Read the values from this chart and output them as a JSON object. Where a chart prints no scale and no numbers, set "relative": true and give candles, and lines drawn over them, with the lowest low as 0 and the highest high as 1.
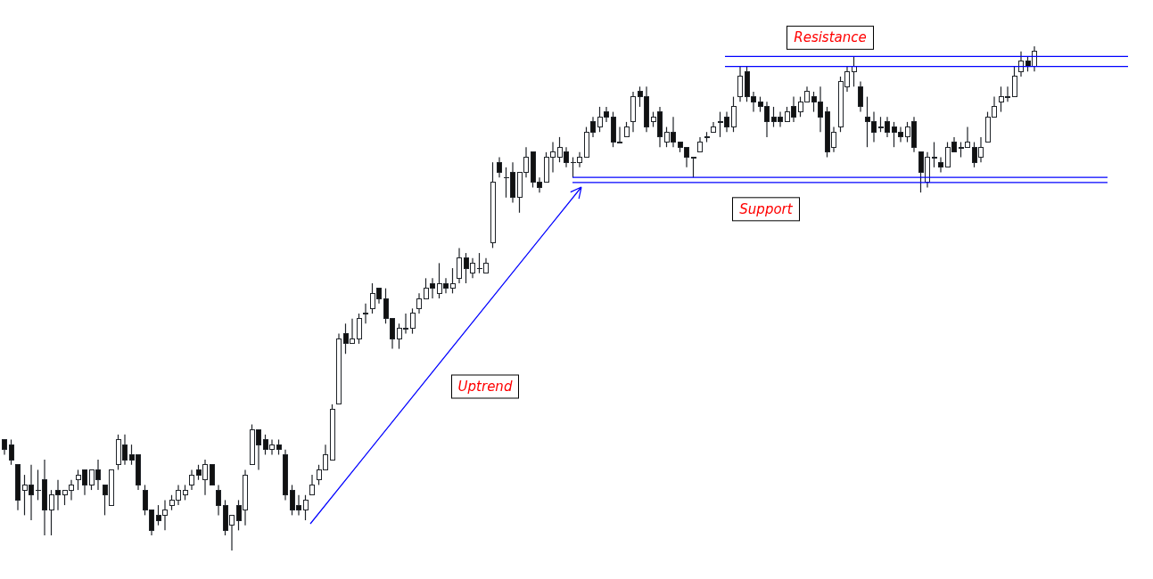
{
  "chart_data": {
    "type": "candlestick",
    "relative": true,
    "categories": [
      null,
      null,
      null,
      null,
      null,
      null,
      null,
      null,
      null,
      null,
      null,
      null,
      null,
      null,
      null,
      null,
      null,
      null,
      null,
      null,
      null,
      null,
      null,
      null,
      null,
      null,
      null,
      null,
      null,
      null,
      null,
      null,
      null,
      null,
      null,
      null,
      null,
      null,
      null,
      null,
      null,
      null,
      null,
      null,
      null,
      null,
      null,
      null,
      null,
      null,
      null,
      null,
      null,
      null,
      null,
      null,
      null,
      null,
      null,
      null,
      null,
      null,
      null,
      null,
      null,
      null,
      null,
      null,
      null,
      null,
      null,
      null,
      null,
      null,
      null,
      null,
      null,
      null,
      null,
      null,
      null,
      null,
      null,
      null,
      null,
      null,
      null,
      null,
      null,
      null,
      null,
      null,
      null,
      null,
      null,
      null,
      null,
      null,
      null,
      null,
      null,
      null,
      null,
      null,
      null,
      null,
      null,
      null,
      null,
      null,
      null,
      null,
      null,
      null,
      null,
      null,
      null,
      null,
      null,
      null,
      null,
      null,
      null,
      null,
      null,
      null,
      null,
      null,
      null,
      null,
      null,
      null,
      null,
      null,
      null,
      null,
      null,
      null,
      null,
      null,
      null,
      null,
      null,
      null,
      null,
      null,
      null,
      null,
      null,
      null,
      null,
      null,
      null,
      null,
      null
    ],
    "ohlc": [
      [
        0.22,
        0.22,
        0.19,
        0.2
      ],
      [
        0.21,
        0.22,
        0.17,
        0.18
      ],
      [
        0.17,
        0.17,
        0.08,
        0.1
      ],
      [
        0.12,
        0.15,
        0.07,
        0.13
      ],
      [
        0.13,
        0.17,
        0.06,
        0.11
      ],
      [
        0.12,
        0.16,
        0.1,
        0.12
      ],
      [
        0.14,
        0.18,
        0.03,
        0.08
      ],
      [
        0.08,
        0.12,
        0.03,
        0.11
      ],
      [
        0.12,
        0.14,
        0.08,
        0.11
      ],
      [
        0.11,
        0.12,
        0.09,
        0.12
      ],
      [
        0.12,
        0.14,
        0.1,
        0.13
      ],
      [
        0.14,
        0.16,
        0.12,
        0.15
      ],
      [
        0.16,
        0.16,
        0.11,
        0.13
      ],
      [
        0.13,
        0.16,
        0.12,
        0.16
      ],
      [
        0.16,
        0.18,
        0.12,
        0.14
      ],
      [
        0.13,
        0.13,
        0.07,
        0.11
      ],
      [
        0.09,
        0.16,
        0.09,
        0.16
      ],
      [
        0.17,
        0.23,
        0.16,
        0.22
      ],
      [
        0.21,
        0.23,
        0.17,
        0.18
      ],
      [
        0.19,
        0.21,
        0.17,
        0.18
      ],
      [
        0.19,
        0.19,
        0.12,
        0.13
      ],
      [
        0.12,
        0.13,
        0.07,
        0.08
      ],
      [
        0.08,
        0.08,
        0.03,
        0.04
      ],
      [
        0.07,
        0.09,
        0.05,
        0.06
      ],
      [
        0.07,
        0.1,
        0.04,
        0.08
      ],
      [
        0.09,
        0.11,
        0.08,
        0.1
      ],
      [
        0.1,
        0.13,
        0.09,
        0.12
      ],
      [
        0.11,
        0.13,
        0.1,
        0.12
      ],
      [
        0.13,
        0.16,
        0.12,
        0.15
      ],
      [
        0.16,
        0.17,
        0.14,
        0.15
      ],
      [
        0.14,
        0.18,
        0.11,
        0.17
      ],
      [
        0.17,
        0.17,
        0.13,
        0.13
      ],
      [
        0.12,
        0.13,
        0.07,
        0.09
      ],
      [
        0.09,
        0.1,
        0.03,
        0.04
      ],
      [
        0.05,
        0.07,
        0,
        0.07
      ],
      [
        0.09,
        0.1,
        0.04,
        0.06
      ],
      [
        0.08,
        0.16,
        0.05,
        0.15
      ],
      [
        0.17,
        0.25,
        0.17,
        0.24
      ],
      [
        0.24,
        0.24,
        0.16,
        0.21
      ],
      [
        0.22,
        0.23,
        0.19,
        0.2
      ],
      [
        0.2,
        0.22,
        0.19,
        0.21
      ],
      [
        0.21,
        0.22,
        0.19,
        0.2
      ],
      [
        0.19,
        0.2,
        0.1,
        0.11
      ],
      [
        0.12,
        0.13,
        0.07,
        0.08
      ],
      [
        0.09,
        0.11,
        0.07,
        0.08
      ],
      [
        0.08,
        0.11,
        0.06,
        0.1
      ],
      [
        0.11,
        0.15,
        0.11,
        0.13
      ],
      [
        0.14,
        0.17,
        0.13,
        0.16
      ],
      [
        0.16,
        0.21,
        0.16,
        0.19
      ],
      [
        0.18,
        0.29,
        0.18,
        0.28
      ],
      [
        0.29,
        0.43,
        0.29,
        0.42
      ],
      [
        0.43,
        0.45,
        0.39,
        0.41
      ],
      [
        0.41,
        0.46,
        0.41,
        0.42
      ],
      [
        0.42,
        0.47,
        0.41,
        0.46
      ],
      [
        0.47,
        0.49,
        0.45,
        0.47
      ],
      [
        0.48,
        0.53,
        0.47,
        0.51
      ],
      [
        0.52,
        0.52,
        0.49,
        0.5
      ],
      [
        0.5,
        0.52,
        0.45,
        0.46
      ],
      [
        0.46,
        0.46,
        0.4,
        0.42
      ],
      [
        0.42,
        0.45,
        0.4,
        0.44
      ],
      [
        0.44,
        0.47,
        0.43,
        0.44
      ],
      [
        0.44,
        0.48,
        0.43,
        0.47
      ],
      [
        0.48,
        0.51,
        0.47,
        0.5
      ],
      [
        0.5,
        0.54,
        0.5,
        0.52
      ],
      [
        0.53,
        0.54,
        0.5,
        0.52
      ],
      [
        0.51,
        0.57,
        0.5,
        0.53
      ],
      [
        0.53,
        0.54,
        0.51,
        0.52
      ],
      [
        0.52,
        0.56,
        0.51,
        0.53
      ],
      [
        0.54,
        0.6,
        0.53,
        0.58
      ],
      [
        0.58,
        0.59,
        0.53,
        0.56
      ],
      [
        0.55,
        0.58,
        0.54,
        0.57
      ],
      [
        0.56,
        0.59,
        0.55,
        0.56
      ],
      [
        0.55,
        0.58,
        0.55,
        0.57
      ],
      [
        0.61,
        0.77,
        0.6,
        0.73
      ],
      [
        0.77,
        0.78,
        0.74,
        0.75
      ],
      [
        0.74,
        0.76,
        0.7,
        0.74
      ],
      [
        0.75,
        0.77,
        0.69,
        0.7
      ],
      [
        0.7,
        0.75,
        0.67,
        0.75
      ],
      [
        0.75,
        0.8,
        0.74,
        0.78
      ],
      [
        0.79,
        0.79,
        0.72,
        0.73
      ],
      [
        0.73,
        0.74,
        0.71,
        0.72
      ],
      [
        0.73,
        0.79,
        0.73,
        0.78
      ],
      [
        0.78,
        0.81,
        0.75,
        0.79
      ],
      [
        0.78,
        0.82,
        0.77,
        0.8
      ],
      [
        0.79,
        0.8,
        0.76,
        0.77
      ],
      [
        0.77,
        0.78,
        0.74,
        0.77
      ],
      [
        0.77,
        0.79,
        0.76,
        0.78
      ],
      [
        0.78,
        0.84,
        0.78,
        0.83
      ],
      [
        0.85,
        0.86,
        0.82,
        0.83
      ],
      [
        0.84,
        0.88,
        0.83,
        0.86
      ],
      [
        0.87,
        0.88,
        0.85,
        0.86
      ],
      [
        0.86,
        0.87,
        0.8,
        0.81
      ],
      [
        0.81,
        0.84,
        0.81,
        0.81
      ],
      [
        0.82,
        0.85,
        0.82,
        0.84
      ],
      [
        0.85,
        0.91,
        0.83,
        0.9
      ],
      [
        0.91,
        0.92,
        0.88,
        0.9
      ],
      [
        0.9,
        0.92,
        0.83,
        0.84
      ],
      [
        0.85,
        0.87,
        0.84,
        0.86
      ],
      [
        0.87,
        0.88,
        0.8,
        0.82
      ],
      [
        0.81,
        0.84,
        0.8,
        0.83
      ],
      [
        0.83,
        0.86,
        0.8,
        0.81
      ],
      [
        0.81,
        0.81,
        0.79,
        0.8
      ],
      [
        0.8,
        0.8,
        0.76,
        0.78
      ],
      [
        0.78,
        0.78,
        0.74,
        0.78
      ],
      [
        0.79,
        0.82,
        0.79,
        0.81
      ],
      [
        0.82,
        0.83,
        0.81,
        0.82
      ],
      [
        0.83,
        0.85,
        0.83,
        0.84
      ],
      [
        0.85,
        0.87,
        0.82,
        0.85
      ],
      [
        0.86,
        0.87,
        0.83,
        0.84
      ],
      [
        0.84,
        0.9,
        0.83,
        0.88
      ],
      [
        0.9,
        0.96,
        0.89,
        0.94
      ],
      [
        0.95,
        0.96,
        0.89,
        0.9
      ],
      [
        0.9,
        0.91,
        0.87,
        0.89
      ],
      [
        0.89,
        0.9,
        0.87,
        0.88
      ],
      [
        0.88,
        0.89,
        0.82,
        0.85
      ],
      [
        0.86,
        0.88,
        0.84,
        0.85
      ],
      [
        0.86,
        0.87,
        0.84,
        0.85
      ],
      [
        0.85,
        0.88,
        0.85,
        0.87
      ],
      [
        0.88,
        0.9,
        0.85,
        0.86
      ],
      [
        0.87,
        0.9,
        0.86,
        0.89
      ],
      [
        0.89,
        0.92,
        0.89,
        0.91
      ],
      [
        0.9,
        0.91,
        0.87,
        0.89
      ],
      [
        0.89,
        0.92,
        0.83,
        0.86
      ],
      [
        0.87,
        0.88,
        0.78,
        0.79
      ],
      [
        0.8,
        0.84,
        0.79,
        0.83
      ],
      [
        0.84,
        0.94,
        0.83,
        0.93
      ],
      [
        0.92,
        0.96,
        0.91,
        0.95
      ],
      [
        0.95,
        0.98,
        0.92,
        0.96
      ],
      [
        0.92,
        0.93,
        0.87,
        0.88
      ],
      [
        0.86,
        0.9,
        0.8,
        0.85
      ],
      [
        0.85,
        0.87,
        0.81,
        0.83
      ],
      [
        0.84,
        0.86,
        0.83,
        0.84
      ],
      [
        0.85,
        0.86,
        0.82,
        0.83
      ],
      [
        0.84,
        0.85,
        0.8,
        0.83
      ],
      [
        0.83,
        0.84,
        0.81,
        0.82
      ],
      [
        0.82,
        0.85,
        0.81,
        0.84
      ],
      [
        0.85,
        0.86,
        0.79,
        0.8
      ],
      [
        0.79,
        0.79,
        0.71,
        0.75
      ],
      [
        0.73,
        0.79,
        0.72,
        0.78
      ],
      [
        0.78,
        0.81,
        0.76,
        0.78
      ],
      [
        0.77,
        0.78,
        0.75,
        0.76
      ],
      [
        0.76,
        0.81,
        0.76,
        0.8
      ],
      [
        0.81,
        0.82,
        0.79,
        0.79
      ],
      [
        0.8,
        0.81,
        0.78,
        0.8
      ],
      [
        0.8,
        0.84,
        0.8,
        0.81
      ],
      [
        0.8,
        0.81,
        0.76,
        0.77
      ],
      [
        0.78,
        0.82,
        0.77,
        0.8
      ],
      [
        0.81,
        0.87,
        0.81,
        0.86
      ],
      [
        0.86,
        0.9,
        0.86,
        0.88
      ],
      [
        0.89,
        0.92,
        0.87,
        0.9
      ],
      [
        0.9,
        0.92,
        0.89,
        0.9
      ],
      [
        0.9,
        0.96,
        0.9,
        0.94
      ],
      [
        0.95,
        0.99,
        0.94,
        0.97
      ],
      [
        0.97,
        0.98,
        0.95,
        0.96
      ],
      [
        0.96,
        1,
        0.95,
        0.99
      ]
    ],
    "ref_lines": [
      {
        "axis": "y",
        "value": 0.98,
        "label": "Resistance",
        "color": "#0000ff"
      },
      {
        "axis": "y",
        "value": 0.96,
        "label": null,
        "color": "#0000ff"
      },
      {
        "axis": "y",
        "value": 0.74,
        "label": null,
        "color": "#0000ff"
      },
      {
        "axis": "y",
        "value": 0.73,
        "label": "Support",
        "color": "#0000ff"
      }
    ],
    "annotations": [
      "Uptrend"
    ]
  }
}
